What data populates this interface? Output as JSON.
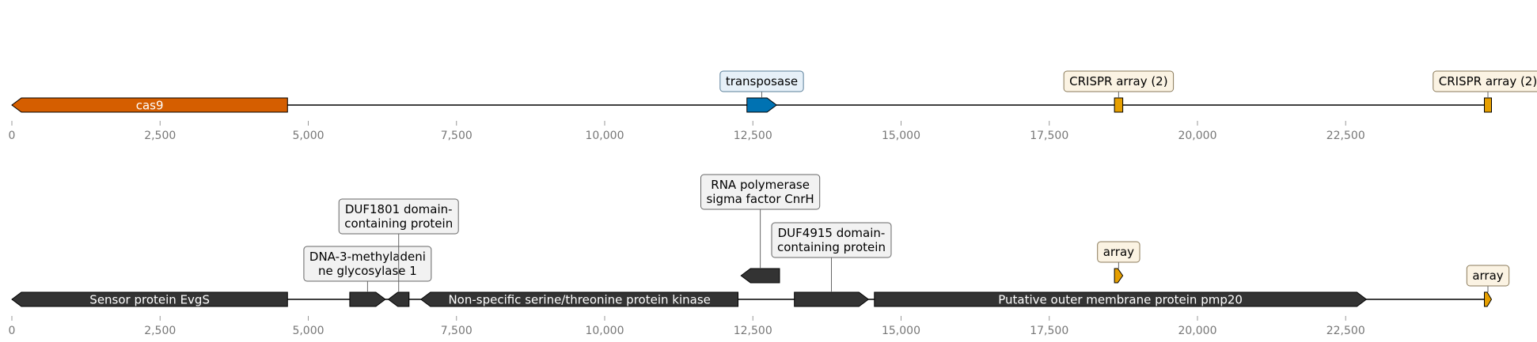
{
  "diagram": {
    "type": "genomic-track-map",
    "axis": {
      "min": 0,
      "max": 24900,
      "ticks": [
        0,
        2500,
        5000,
        7500,
        10000,
        12500,
        15000,
        17500,
        20000,
        22500
      ],
      "tick_labels": [
        "0",
        "2,500",
        "5,000",
        "7,500",
        "10,000",
        "12,500",
        "15,000",
        "17,500",
        "20,000",
        "22,500"
      ]
    },
    "tracks": [
      {
        "name": "track-top",
        "features": [
          {
            "id": "cas9",
            "start": 0,
            "end": 4650,
            "strand": -1,
            "color": "#D55E00",
            "label": "cas9",
            "label_mode": "inline"
          },
          {
            "id": "transposase",
            "start": 12400,
            "end": 12900,
            "strand": 1,
            "color": "#0072B2",
            "label": "transposase",
            "label_mode": "box",
            "box_fill": "#e6f0f8",
            "box_stroke": "#5a7f9a"
          },
          {
            "id": "crispr-array-1",
            "start": 18600,
            "end": 18740,
            "strand": 0,
            "color": "#E69F00",
            "label": "CRISPR array (2)",
            "label_mode": "box",
            "box_fill": "#fbf3e3",
            "box_stroke": "#8a7a5a"
          },
          {
            "id": "crispr-array-2",
            "start": 24840,
            "end": 24960,
            "strand": 0,
            "color": "#E69F00",
            "label": "CRISPR array (2)",
            "label_mode": "box",
            "box_fill": "#fbf3e3",
            "box_stroke": "#8a7a5a"
          }
        ]
      },
      {
        "name": "track-bottom",
        "features": [
          {
            "id": "sensor-evgs",
            "start": 0,
            "end": 4650,
            "strand": -1,
            "color": "#333333",
            "label": "Sensor protein EvgS",
            "label_mode": "inline"
          },
          {
            "id": "dna3-methyladenine",
            "start": 5700,
            "end": 6300,
            "strand": 1,
            "color": "#333333",
            "label": "DNA-3-methyladeni\nne glycosylase 1",
            "label_mode": "box",
            "box_fill": "#f2f2f2",
            "box_stroke": "#666666"
          },
          {
            "id": "duf1801",
            "start": 6350,
            "end": 6700,
            "strand": -1,
            "color": "#333333",
            "label": "DUF1801 domain-\ncontaining protein",
            "label_mode": "box",
            "box_fill": "#f2f2f2",
            "box_stroke": "#666666"
          },
          {
            "id": "serine-threonine-kinase",
            "start": 6900,
            "end": 12250,
            "strand": -1,
            "color": "#333333",
            "label": "Non-specific serine/threonine protein kinase",
            "label_mode": "inline"
          },
          {
            "id": "rna-pol-sigma-cnrh",
            "start": 12300,
            "end": 12950,
            "strand": -1,
            "color": "#333333",
            "label": "RNA polymerase\nsigma factor CnrH",
            "label_mode": "box",
            "box_fill": "#f2f2f2",
            "box_stroke": "#666666",
            "row": 1
          },
          {
            "id": "duf4915",
            "start": 13200,
            "end": 14450,
            "strand": 1,
            "color": "#333333",
            "label": "DUF4915 domain-\ncontaining protein",
            "label_mode": "box",
            "box_fill": "#f2f2f2",
            "box_stroke": "#666666"
          },
          {
            "id": "pmp20",
            "start": 14550,
            "end": 22850,
            "strand": 1,
            "color": "#333333",
            "label": "Putative outer membrane protein pmp20",
            "label_mode": "inline"
          },
          {
            "id": "array-1",
            "start": 18600,
            "end": 18740,
            "strand": 1,
            "color": "#E69F00",
            "label": "array",
            "label_mode": "box",
            "box_fill": "#fbf3e3",
            "box_stroke": "#8a7a5a",
            "row": 1
          },
          {
            "id": "array-2",
            "start": 24840,
            "end": 24960,
            "strand": 1,
            "color": "#E69F00",
            "label": "array",
            "label_mode": "box",
            "box_fill": "#fbf3e3",
            "box_stroke": "#8a7a5a"
          }
        ]
      }
    ]
  }
}
